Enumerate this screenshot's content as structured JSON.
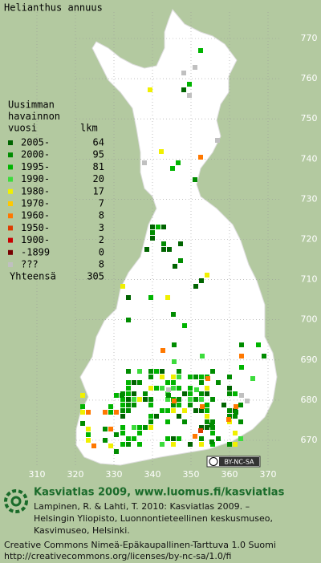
{
  "title": "Helianthus annuus",
  "legend": {
    "header": [
      "Uusimman",
      "havainnon",
      "vuosi"
    ],
    "count_header": "lkm",
    "rows": [
      {
        "label": "2005-",
        "count": 64,
        "color": "#006400"
      },
      {
        "label": "2000-",
        "count": 95,
        "color": "#008c00"
      },
      {
        "label": "1995-",
        "count": 81,
        "color": "#00b400"
      },
      {
        "label": "1990-",
        "count": 20,
        "color": "#3cdc3c"
      },
      {
        "label": "1980-",
        "count": 17,
        "color": "#f0f000"
      },
      {
        "label": "1970-",
        "count": 7,
        "color": "#ffc800"
      },
      {
        "label": "1960-",
        "count": 8,
        "color": "#ff7800"
      },
      {
        "label": "1950-",
        "count": 3,
        "color": "#dc3c00"
      },
      {
        "label": "1900-",
        "count": 2,
        "color": "#c80000"
      },
      {
        "label": "-1899",
        "count": 0,
        "color": "#780000"
      },
      {
        "label": "???",
        "count": 8,
        "color": "#c0c0c0"
      }
    ],
    "total_label": "Yhteensä",
    "total": 305
  },
  "grid": {
    "north": [
      770,
      760,
      750,
      740,
      730,
      720,
      710,
      700,
      690,
      680,
      670
    ],
    "east": [
      310,
      320,
      330,
      340,
      350,
      360,
      370
    ]
  },
  "license_badge": "BY-NC-SA",
  "footer": {
    "heading": "Kasviatlas 2009, www.luomus.fi/kasviatlas",
    "citation": [
      "Lampinen, R. & Lahti, T. 2010: Kasviatlas 2009. –",
      "Helsingin Yliopisto, Luonnontieteellinen keskusmuseo,",
      "Kasvimuseo, Helsinki."
    ],
    "license": [
      "Creative Commons Nimeä-Epäkaupallinen-Tarttuva 1.0 Suomi",
      "http://creativecommons.org/licenses/by-nc-sa/1.0/fi"
    ]
  }
}
